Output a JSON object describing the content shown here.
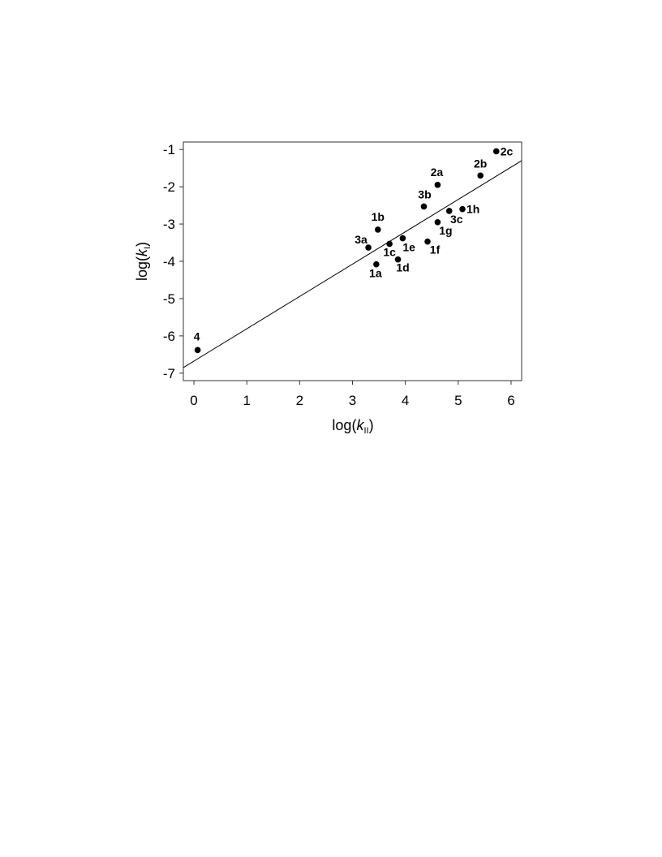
{
  "chart_data": {
    "type": "scatter",
    "xlabel": {
      "prefix": "log(",
      "var": "k",
      "sub": "II",
      "suffix": ")"
    },
    "ylabel": {
      "prefix": "log(",
      "var": "k",
      "sub": "I",
      "suffix": ")"
    },
    "xlim": [
      -0.2,
      6.2
    ],
    "ylim": [
      -7.2,
      -0.8
    ],
    "x_ticks": [
      0,
      1,
      2,
      3,
      4,
      5,
      6
    ],
    "y_ticks": [
      -1,
      -2,
      -3,
      -4,
      -5,
      -6,
      -7
    ],
    "grid": false,
    "legend": null,
    "points": [
      {
        "label": "4",
        "x": 0.07,
        "y": -6.38
      },
      {
        "label": "1a",
        "x": 3.45,
        "y": -4.08
      },
      {
        "label": "1b",
        "x": 3.48,
        "y": -3.15
      },
      {
        "label": "3a",
        "x": 3.3,
        "y": -3.63
      },
      {
        "label": "1c",
        "x": 3.7,
        "y": -3.53
      },
      {
        "label": "1d",
        "x": 3.86,
        "y": -3.95
      },
      {
        "label": "1e",
        "x": 3.95,
        "y": -3.38
      },
      {
        "label": "1f",
        "x": 4.42,
        "y": -3.47
      },
      {
        "label": "3b",
        "x": 4.35,
        "y": -2.53
      },
      {
        "label": "2a",
        "x": 4.61,
        "y": -1.95
      },
      {
        "label": "1g",
        "x": 4.61,
        "y": -2.95
      },
      {
        "label": "3c",
        "x": 4.83,
        "y": -2.65
      },
      {
        "label": "1h",
        "x": 5.08,
        "y": -2.6
      },
      {
        "label": "2b",
        "x": 5.42,
        "y": -1.7
      },
      {
        "label": "2c",
        "x": 5.72,
        "y": -1.05
      }
    ],
    "fit_line": {
      "x": [
        -0.2,
        6.2
      ],
      "y": [
        -6.85,
        -1.3
      ]
    }
  }
}
